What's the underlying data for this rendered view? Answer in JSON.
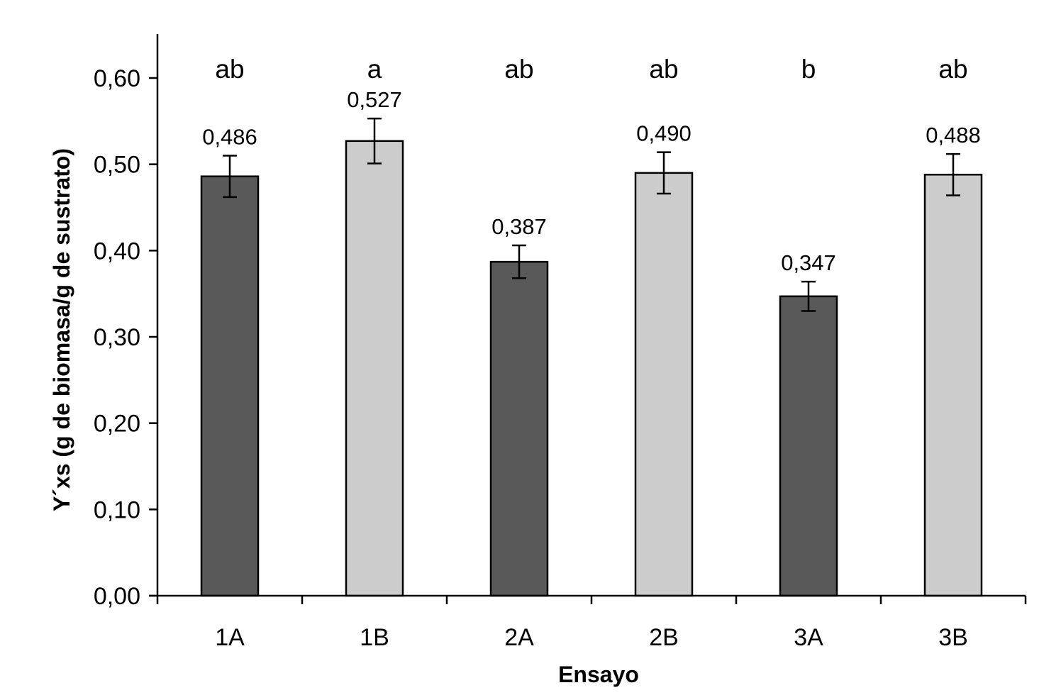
{
  "chart_data": {
    "type": "bar",
    "title": "",
    "xlabel": "Ensayo",
    "ylabel": "Y´xs (g de biomasa/g de sustrato)",
    "categories": [
      "1A",
      "1B",
      "2A",
      "2B",
      "3A",
      "3B"
    ],
    "values": [
      0.486,
      0.527,
      0.387,
      0.49,
      0.347,
      0.488
    ],
    "value_labels": [
      "0,486",
      "0,527",
      "0,387",
      "0,490",
      "0,347",
      "0,488"
    ],
    "error": [
      0.024,
      0.026,
      0.019,
      0.024,
      0.017,
      0.024
    ],
    "significance_letters": [
      "ab",
      "a",
      "ab",
      "ab",
      "b",
      "ab"
    ],
    "ylim": [
      0,
      0.6
    ],
    "yticks": [
      0,
      0.1,
      0.2,
      0.3,
      0.4,
      0.5,
      0.6
    ],
    "ytick_labels": [
      "0,00",
      "0,10",
      "0,20",
      "0,30",
      "0,40",
      "0,50",
      "0,60"
    ],
    "bar_colors": [
      "#595959",
      "#cccccc",
      "#595959",
      "#cccccc",
      "#595959",
      "#cccccc"
    ],
    "grid": false,
    "legend": "none"
  }
}
